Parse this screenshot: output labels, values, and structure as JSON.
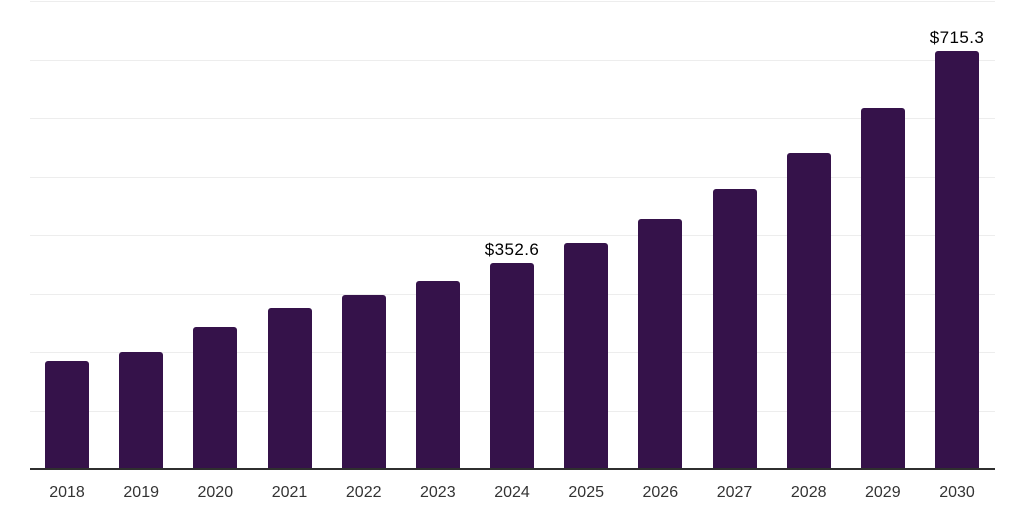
{
  "chart": {
    "background_color": "#ffffff",
    "bar_color": "#35124a",
    "grid_color": "#ededed",
    "axis_color": "#2f2f2f",
    "tick_label_color": "#333333",
    "data_label_color": "#000000"
  },
  "chart_data": {
    "type": "bar",
    "title": "",
    "xlabel": "",
    "ylabel": "",
    "categories": [
      "2018",
      "2019",
      "2020",
      "2021",
      "2022",
      "2023",
      "2024",
      "2025",
      "2026",
      "2027",
      "2028",
      "2029",
      "2030"
    ],
    "values": [
      184.6,
      200.0,
      242.7,
      275.2,
      297.4,
      321.4,
      352.6,
      386.3,
      427.4,
      478.6,
      540.2,
      617.1,
      715.3
    ],
    "data_labels": [
      {
        "category": "2024",
        "text": "$352.6"
      },
      {
        "category": "2030",
        "text": "$715.3"
      }
    ],
    "ylim": [
      0,
      800
    ],
    "grid_interval": 100,
    "grid": true,
    "legend": false,
    "y_axis_labels_visible": false
  }
}
